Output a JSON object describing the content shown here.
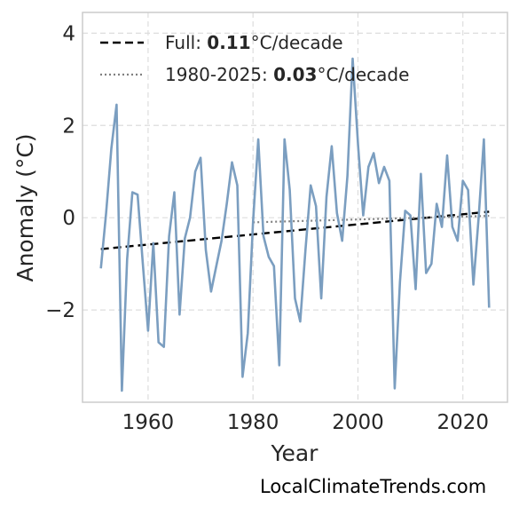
{
  "watermark": "LocalClimateTrends.com",
  "chart_data": {
    "type": "line",
    "xlabel": "Year",
    "ylabel": "Anomaly (°C)",
    "xlim": [
      1947.5,
      2028.5
    ],
    "ylim": [
      -4.0,
      4.45
    ],
    "xticks": [
      1960,
      1980,
      2000,
      2020
    ],
    "yticks": [
      4,
      2,
      0,
      -2
    ],
    "ytick_labels": [
      "4",
      "2",
      "0",
      "−2"
    ],
    "grid": true,
    "legend_position": "top-left",
    "series": [
      {
        "color": "#7b9ec0",
        "x": [
          1951,
          1952,
          1953,
          1954,
          1955,
          1956,
          1957,
          1958,
          1959,
          1960,
          1961,
          1962,
          1963,
          1964,
          1965,
          1966,
          1967,
          1968,
          1969,
          1970,
          1971,
          1972,
          1973,
          1974,
          1975,
          1976,
          1977,
          1978,
          1979,
          1980,
          1981,
          1982,
          1983,
          1984,
          1985,
          1986,
          1987,
          1988,
          1989,
          1990,
          1991,
          1992,
          1993,
          1994,
          1995,
          1996,
          1997,
          1998,
          1999,
          2000,
          2001,
          2002,
          2003,
          2004,
          2005,
          2006,
          2007,
          2008,
          2009,
          2010,
          2011,
          2012,
          2013,
          2014,
          2015,
          2016,
          2017,
          2018,
          2019,
          2020,
          2021,
          2022,
          2023,
          2024,
          2025
        ],
        "y": [
          -1.1,
          0.1,
          1.5,
          2.45,
          -3.75,
          -0.9,
          0.55,
          0.5,
          -1.0,
          -2.45,
          -0.55,
          -2.7,
          -2.8,
          -0.4,
          0.55,
          -2.1,
          -0.45,
          0.0,
          1.0,
          1.3,
          -0.7,
          -1.6,
          -1.05,
          -0.5,
          0.3,
          1.2,
          0.7,
          -3.45,
          -2.5,
          -0.1,
          1.7,
          -0.4,
          -0.85,
          -1.05,
          -3.2,
          1.7,
          0.6,
          -1.75,
          -2.25,
          -0.7,
          0.7,
          0.25,
          -1.75,
          0.45,
          1.55,
          0.1,
          -0.5,
          0.9,
          3.45,
          1.6,
          0.05,
          1.1,
          1.4,
          0.75,
          1.1,
          0.8,
          -3.7,
          -1.4,
          0.15,
          0.05,
          -1.55,
          0.95,
          -1.2,
          -1.0,
          0.3,
          -0.2,
          1.35,
          -0.2,
          -0.5,
          0.8,
          0.6,
          -1.45,
          0.0,
          1.7,
          -1.95
        ]
      }
    ],
    "trends": [
      {
        "label_prefix": "Full: ",
        "label_value": "0.11",
        "label_suffix": "°C/decade",
        "style": "dashed",
        "color": "#000000",
        "x": [
          1951,
          2025
        ],
        "y": [
          -0.68,
          0.13
        ]
      },
      {
        "label_prefix": "1980-2025: ",
        "label_value": "0.03",
        "label_suffix": "°C/decade",
        "style": "dotted",
        "color": "#808080",
        "x": [
          1980,
          2025
        ],
        "y": [
          -0.1,
          0.04
        ]
      }
    ]
  }
}
